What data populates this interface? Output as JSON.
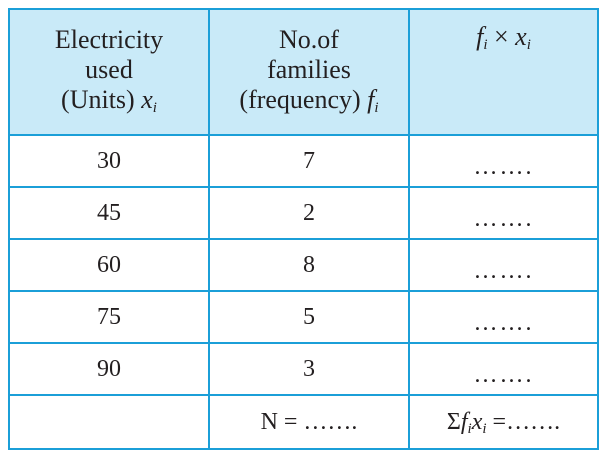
{
  "table": {
    "headers": [
      {
        "lines": [
          "Electricity",
          "used",
          "(Units) "
        ],
        "var": "x",
        "sub": "i"
      },
      {
        "lines": [
          "No.of",
          "families",
          "(frequency) "
        ],
        "var": "f",
        "sub": "i"
      },
      {
        "product": {
          "f": "f",
          "f_sub": "i",
          "times": "×",
          "x": "x",
          "x_sub": "i"
        }
      }
    ],
    "rows": [
      {
        "units": "30",
        "families": "7",
        "product": "……."
      },
      {
        "units": "45",
        "families": "2",
        "product": "……."
      },
      {
        "units": "60",
        "families": "8",
        "product": "……."
      },
      {
        "units": "75",
        "families": "5",
        "product": "……."
      },
      {
        "units": "90",
        "families": "3",
        "product": "……."
      }
    ],
    "totals": {
      "units": "",
      "families": "N = …….",
      "sum_sigma": "Σ",
      "sum_f": "f",
      "sum_f_sub": "i",
      "sum_x": "x",
      "sum_x_sub": "i",
      "sum_rest": " =……."
    }
  },
  "colors": {
    "border": "#1b9fd8",
    "header_bg": "#c9eaf8",
    "text": "#231f20"
  }
}
